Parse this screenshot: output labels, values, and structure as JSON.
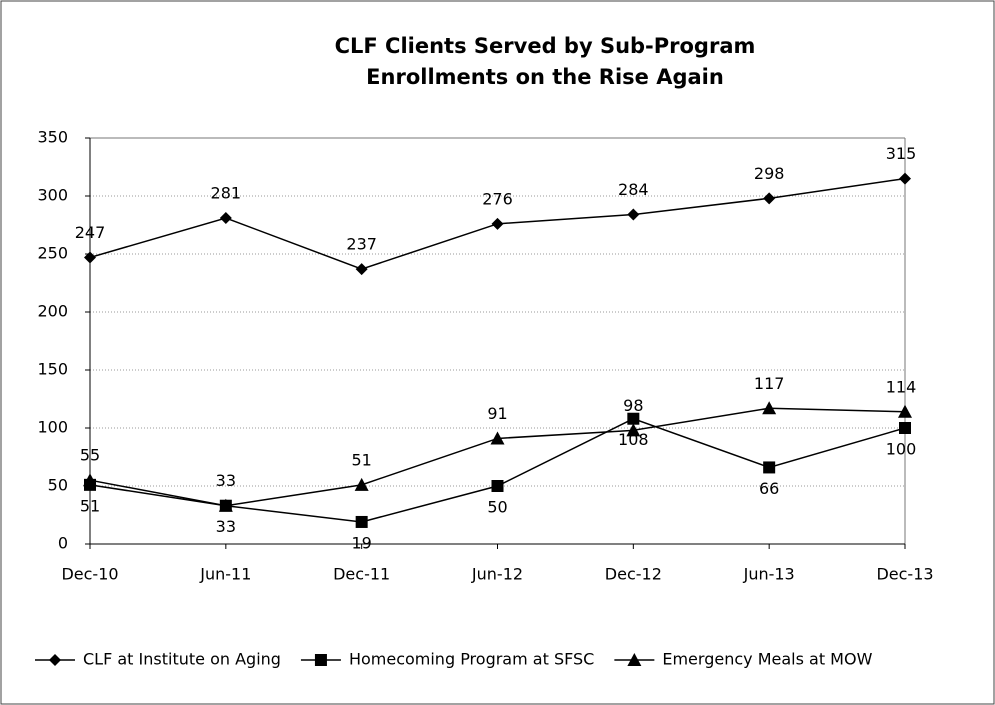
{
  "chart_data": {
    "type": "line",
    "title": "CLF Clients Served by Sub-Program",
    "subtitle": "Enrollments on the Rise Again",
    "categories": [
      "Dec-10",
      "Jun-11",
      "Dec-11",
      "Jun-12",
      "Dec-12",
      "Jun-13",
      "Dec-13"
    ],
    "series": [
      {
        "name": "CLF at Institute on Aging",
        "color": "#000000",
        "marker": "diamond",
        "values": [
          247,
          281,
          237,
          276,
          284,
          298,
          315
        ]
      },
      {
        "name": "Homecoming Program at SFSC",
        "color": "#000000",
        "marker": "square",
        "values": [
          51,
          33,
          19,
          50,
          108,
          66,
          100
        ]
      },
      {
        "name": "Emergency Meals at MOW",
        "color": "#000000",
        "marker": "triangle",
        "values": [
          55,
          33,
          51,
          91,
          98,
          117,
          114
        ]
      }
    ],
    "ylim": [
      0,
      350
    ],
    "yticks": [
      0,
      50,
      100,
      150,
      200,
      250,
      300,
      350
    ],
    "grid": true,
    "legend": "bottom"
  }
}
